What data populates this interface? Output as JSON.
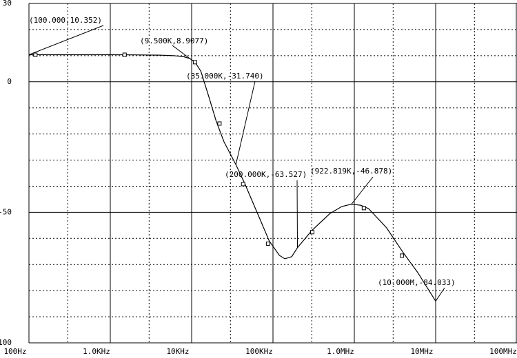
{
  "chart_data": {
    "type": "line",
    "xscale": "log",
    "color": "#000000",
    "xlim": [
      100,
      100000000
    ],
    "ylim": [
      -100,
      30
    ],
    "xticks": [
      {
        "value": 100,
        "label": "100Hz"
      },
      {
        "value": 1000,
        "label": "1.0KHz"
      },
      {
        "value": 10000,
        "label": "10KHz"
      },
      {
        "value": 100000,
        "label": "100KHz"
      },
      {
        "value": 1000000,
        "label": "1.0MHz"
      },
      {
        "value": 10000000,
        "label": "10MHz"
      },
      {
        "value": 100000000,
        "label": "100MHz"
      }
    ],
    "yticks": [
      30,
      0,
      -50,
      -100
    ],
    "xminor": [
      300,
      3000,
      30000,
      300000,
      3000000,
      30000000
    ],
    "yminor": [
      20,
      10,
      -10,
      -20,
      -30,
      -40,
      -60,
      -70,
      -80,
      -90
    ],
    "series": [
      {
        "x": [
          100,
          200,
          500,
          1000,
          2000,
          4000,
          6000,
          8000,
          9500,
          11000,
          13000,
          16000,
          20000,
          25000,
          35000,
          45000,
          70000,
          90000,
          120000,
          140000,
          170000,
          200000,
          300000,
          500000,
          700000,
          922819,
          1200000,
          1500000,
          2500000,
          4000000,
          6000000,
          10000000
        ],
        "values": [
          10.352,
          10.35,
          10.35,
          10.35,
          10.3,
          10.2,
          10,
          9.6,
          8.9077,
          7.5,
          4,
          -5,
          -15,
          -23,
          -31.74,
          -39,
          -53,
          -61,
          -66.5,
          -67.8,
          -67,
          -63.527,
          -57,
          -50.5,
          -47.8,
          -46.878,
          -47.3,
          -48.6,
          -56,
          -65.5,
          -73,
          -84.033
        ]
      },
      {
        "type": "scatter",
        "x": [
          120,
          1500,
          11000,
          22000,
          43000,
          87000,
          304000,
          1310000,
          3850000
        ],
        "values": [
          10.35,
          10.35,
          7.5,
          -16,
          -39.2,
          -62,
          -57.6,
          -48.4,
          -66.6
        ]
      }
    ],
    "annotations": [
      {
        "text": "(100.000,10.352)",
        "x": 100,
        "y": 10.352
      },
      {
        "text": "(9.500K,8.9077)",
        "x": 9500,
        "y": 8.9077
      },
      {
        "text": "(35.000K,-31.740)",
        "x": 35000,
        "y": -31.74
      },
      {
        "text": "(200.000K,-63.527)",
        "x": 200000,
        "y": -63.527
      },
      {
        "text": "(922.819K,-46.878)",
        "x": 922819,
        "y": -46.878
      },
      {
        "text": "(10.000M,-84.033)",
        "x": 10000000,
        "y": -84.033
      }
    ]
  }
}
